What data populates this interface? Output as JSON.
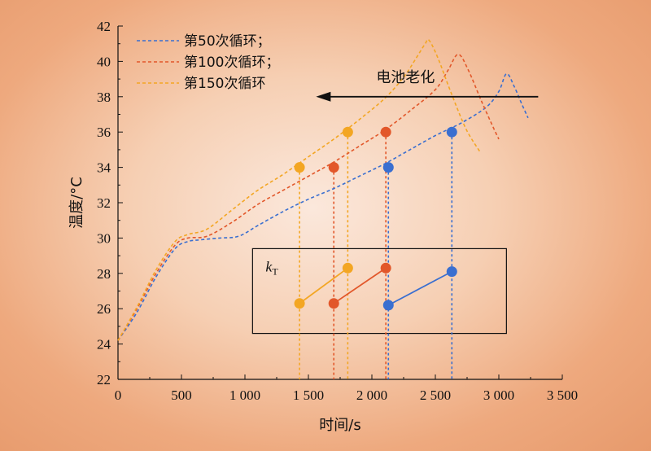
{
  "chart_data": {
    "type": "line",
    "xlabel": "时间/s",
    "ylabel": "温度/°C",
    "xlim": [
      0,
      3500
    ],
    "ylim": [
      22,
      42
    ],
    "x_ticks": [
      0,
      500,
      1000,
      1500,
      2000,
      2500,
      3000,
      3500
    ],
    "x_tick_labels": [
      "0",
      "500",
      "1 000",
      "1 500",
      "2 000",
      "2 500",
      "3 000",
      "3 500"
    ],
    "y_ticks": [
      22,
      24,
      26,
      28,
      30,
      32,
      34,
      36,
      38,
      40,
      42
    ],
    "y_tick_labels": [
      "22",
      "24",
      "26",
      "28",
      "30",
      "32",
      "34",
      "36",
      "38",
      "40",
      "42"
    ],
    "legend_position": "top-left",
    "series": [
      {
        "name": "第50次循环；",
        "color": "#3a6fd0",
        "x": [
          0,
          150,
          300,
          450,
          550,
          650,
          800,
          950,
          1100,
          1300,
          1500,
          1700,
          1900,
          2100,
          2300,
          2500,
          2700,
          2900,
          3000,
          3060,
          3120,
          3180,
          3230
        ],
        "y": [
          24.2,
          25.8,
          27.8,
          29.4,
          29.8,
          29.9,
          30.0,
          30.1,
          30.7,
          31.5,
          32.2,
          32.8,
          33.5,
          34.2,
          35.0,
          35.8,
          36.5,
          37.4,
          38.3,
          39.3,
          38.6,
          37.6,
          36.8
        ]
      },
      {
        "name": "第100次循环；",
        "color": "#e2572a",
        "x": [
          0,
          150,
          300,
          450,
          550,
          700,
          900,
          1100,
          1300,
          1500,
          1700,
          1900,
          2100,
          2300,
          2500,
          2600,
          2680,
          2760,
          2860,
          2960,
          3000
        ],
        "y": [
          24.2,
          26.0,
          28.0,
          29.6,
          30.0,
          30.1,
          30.9,
          31.9,
          32.7,
          33.5,
          34.3,
          35.2,
          36.1,
          37.2,
          38.4,
          39.5,
          40.4,
          39.5,
          37.8,
          36.2,
          35.6
        ]
      },
      {
        "name": "第150次循环",
        "color": "#f3a623",
        "x": [
          0,
          150,
          300,
          450,
          550,
          700,
          900,
          1100,
          1300,
          1500,
          1700,
          1900,
          2100,
          2250,
          2350,
          2420,
          2450,
          2520,
          2620,
          2740,
          2850
        ],
        "y": [
          24.2,
          26.1,
          28.2,
          29.8,
          30.2,
          30.5,
          31.6,
          32.7,
          33.6,
          34.6,
          35.6,
          36.7,
          37.9,
          39.1,
          40.2,
          41.0,
          41.2,
          40.2,
          38.3,
          36.2,
          34.9
        ]
      }
    ],
    "markers": [
      {
        "series": 0,
        "x": 2130,
        "y": 34.0
      },
      {
        "series": 0,
        "x": 2630,
        "y": 36.0
      },
      {
        "series": 1,
        "x": 1700,
        "y": 34.0
      },
      {
        "series": 1,
        "x": 2110,
        "y": 36.0
      },
      {
        "series": 2,
        "x": 1430,
        "y": 34.0
      },
      {
        "series": 2,
        "x": 1810,
        "y": 36.0
      }
    ],
    "inset_segments": [
      {
        "series": 2,
        "x1": 1430,
        "y1": 26.3,
        "x2": 1810,
        "y2": 28.3
      },
      {
        "series": 1,
        "x1": 1700,
        "y1": 26.3,
        "x2": 2110,
        "y2": 28.3
      },
      {
        "series": 0,
        "x1": 2130,
        "y1": 26.2,
        "x2": 2630,
        "y2": 28.1
      }
    ],
    "inset_box": {
      "x1": 1060,
      "x2": 3060,
      "y1": 24.6,
      "y2": 29.4
    },
    "annotations": {
      "kt_main": "k",
      "kt_sub": "T",
      "arrow_label": "电池老化",
      "arrow": {
        "x_from": 3310,
        "x_to": 1560,
        "y": 38.0
      }
    }
  }
}
